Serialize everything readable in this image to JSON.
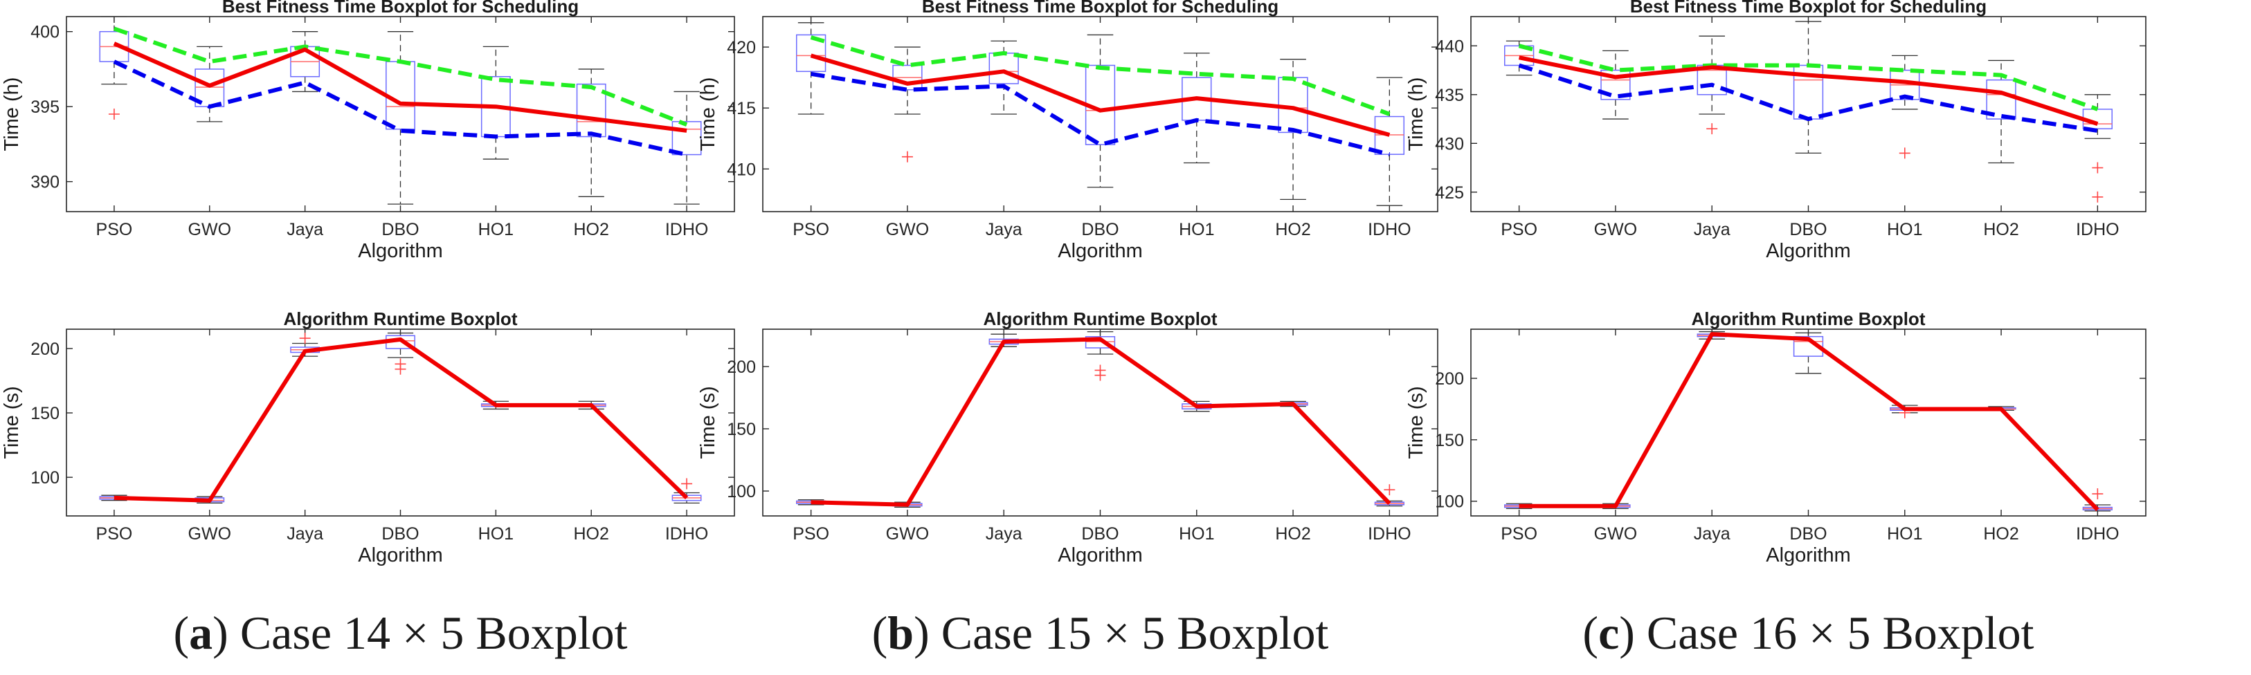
{
  "panels": [
    {
      "caption": {
        "letter": "a",
        "text": " Case 14 × 5 Boxplot"
      },
      "charts": [
        {
          "type": "box",
          "title": "Best Fitness Time Boxplot for Scheduling",
          "xlabel": "Algorithm",
          "ylabel": "Time (h)",
          "categories": [
            "PSO",
            "GWO",
            "Jaya",
            "DBO",
            "HO1",
            "HO2",
            "IDHO"
          ],
          "ylim": [
            388,
            401
          ],
          "yticks": [
            390,
            395,
            400
          ],
          "boxes": [
            {
              "min": 396.5,
              "q1": 398.0,
              "median": 399.0,
              "q3": 400.0,
              "max": 401.0,
              "outliers": [
                394.5
              ]
            },
            {
              "min": 394.0,
              "q1": 395.0,
              "median": 396.3,
              "q3": 397.5,
              "max": 399.0,
              "outliers": []
            },
            {
              "min": 396.0,
              "q1": 397.0,
              "median": 398.0,
              "q3": 399.0,
              "max": 400.0,
              "outliers": []
            },
            {
              "min": 388.5,
              "q1": 393.5,
              "median": 395.0,
              "q3": 398.0,
              "max": 400.0,
              "outliers": []
            },
            {
              "min": 391.5,
              "q1": 393.0,
              "median": 395.0,
              "q3": 397.0,
              "max": 399.0,
              "outliers": []
            },
            {
              "min": 389.0,
              "q1": 393.0,
              "median": 394.0,
              "q3": 396.5,
              "max": 397.5,
              "outliers": []
            },
            {
              "min": 388.5,
              "q1": 391.8,
              "median": 393.5,
              "q3": 394.0,
              "max": 396.0,
              "outliers": []
            }
          ],
          "lines": {
            "max": [
              400.2,
              398.0,
              399.0,
              398.0,
              396.8,
              396.3,
              393.8
            ],
            "mean": [
              399.2,
              396.4,
              398.8,
              395.2,
              395.0,
              394.2,
              393.4
            ],
            "min": [
              398.0,
              395.0,
              396.6,
              393.4,
              393.0,
              393.2,
              391.8
            ]
          }
        },
        {
          "type": "box",
          "title": "Algorithm Runtime Boxplot",
          "xlabel": "Algorithm",
          "ylabel": "Time (s)",
          "categories": [
            "PSO",
            "GWO",
            "Jaya",
            "DBO",
            "HO1",
            "HO2",
            "IDHO"
          ],
          "ylim": [
            70,
            215
          ],
          "yticks": [
            100,
            150,
            200
          ],
          "boxes": [
            {
              "min": 82,
              "q1": 83,
              "median": 84,
              "q3": 85,
              "max": 86,
              "outliers": []
            },
            {
              "min": 80,
              "q1": 81,
              "median": 82,
              "q3": 84,
              "max": 85,
              "outliers": []
            },
            {
              "min": 194,
              "q1": 197,
              "median": 199,
              "q3": 201,
              "max": 204,
              "outliers": [
                208
              ]
            },
            {
              "min": 193,
              "q1": 200,
              "median": 206,
              "q3": 210,
              "max": 212,
              "outliers": [
                188,
                184
              ]
            },
            {
              "min": 153,
              "q1": 155,
              "median": 156,
              "q3": 157,
              "max": 159,
              "outliers": []
            },
            {
              "min": 153,
              "q1": 155,
              "median": 156,
              "q3": 157,
              "max": 159,
              "outliers": []
            },
            {
              "min": 80,
              "q1": 82,
              "median": 84,
              "q3": 86,
              "max": 88,
              "outliers": [
                95
              ]
            }
          ],
          "lines": {
            "mean": [
              84,
              82,
              198,
              207,
              156,
              156,
              84
            ]
          }
        }
      ]
    },
    {
      "caption": {
        "letter": "b",
        "text": " Case 15 × 5 Boxplot"
      },
      "charts": [
        {
          "type": "box",
          "title": "Best Fitness Time Boxplot for Scheduling",
          "xlabel": "Algorithm",
          "ylabel": "Time (h)",
          "categories": [
            "PSO",
            "GWO",
            "Jaya",
            "DBO",
            "HO1",
            "HO2",
            "IDHO"
          ],
          "ylim": [
            406.5,
            422.5
          ],
          "yticks": [
            410,
            415,
            420
          ],
          "boxes": [
            {
              "min": 414.5,
              "q1": 418.0,
              "median": 419.3,
              "q3": 421.0,
              "max": 422.0,
              "outliers": []
            },
            {
              "min": 414.5,
              "q1": 416.5,
              "median": 417.5,
              "q3": 418.5,
              "max": 420.0,
              "outliers": [
                411.0
              ]
            },
            {
              "min": 414.5,
              "q1": 417.0,
              "median": 418.0,
              "q3": 419.5,
              "max": 420.5,
              "outliers": []
            },
            {
              "min": 408.5,
              "q1": 412.0,
              "median": 414.8,
              "q3": 418.5,
              "max": 421.0,
              "outliers": []
            },
            {
              "min": 410.5,
              "q1": 414.0,
              "median": 415.8,
              "q3": 417.5,
              "max": 419.5,
              "outliers": []
            },
            {
              "min": 407.5,
              "q1": 413.0,
              "median": 415.0,
              "q3": 417.5,
              "max": 419.0,
              "outliers": []
            },
            {
              "min": 407.0,
              "q1": 411.2,
              "median": 412.8,
              "q3": 414.3,
              "max": 417.5,
              "outliers": []
            }
          ],
          "lines": {
            "max": [
              420.8,
              418.5,
              419.5,
              418.3,
              417.8,
              417.4,
              414.5
            ],
            "mean": [
              419.3,
              417.0,
              418.0,
              414.8,
              415.8,
              415.0,
              412.8
            ],
            "min": [
              417.8,
              416.5,
              416.8,
              412.0,
              414.0,
              413.2,
              411.2
            ]
          }
        },
        {
          "type": "box",
          "title": "Algorithm Runtime Boxplot",
          "xlabel": "Algorithm",
          "ylabel": "Time (s)",
          "categories": [
            "PSO",
            "GWO",
            "Jaya",
            "DBO",
            "HO1",
            "HO2",
            "IDHO"
          ],
          "ylim": [
            80,
            230
          ],
          "yticks": [
            100,
            150,
            200
          ],
          "boxes": [
            {
              "min": 89,
              "q1": 90,
              "median": 91,
              "q3": 92,
              "max": 93,
              "outliers": []
            },
            {
              "min": 87,
              "q1": 88,
              "median": 89,
              "q3": 90,
              "max": 91,
              "outliers": []
            },
            {
              "min": 216,
              "q1": 218,
              "median": 220,
              "q3": 222,
              "max": 226,
              "outliers": []
            },
            {
              "min": 210,
              "q1": 215,
              "median": 220,
              "q3": 224,
              "max": 228,
              "outliers": [
                197,
                193
              ]
            },
            {
              "min": 164,
              "q1": 166,
              "median": 168,
              "q3": 170,
              "max": 172,
              "outliers": []
            },
            {
              "min": 168,
              "q1": 169,
              "median": 170,
              "q3": 171,
              "max": 172,
              "outliers": []
            },
            {
              "min": 88,
              "q1": 89,
              "median": 90,
              "q3": 91,
              "max": 92,
              "outliers": [
                101
              ]
            }
          ],
          "lines": {
            "mean": [
              91,
              89,
              220,
              222,
              168,
              170,
              90
            ]
          }
        }
      ]
    },
    {
      "caption": {
        "letter": "c",
        "text": " Case 16 × 5 Boxplot"
      },
      "charts": [
        {
          "type": "box",
          "title": "Best Fitness Time Boxplot for Scheduling",
          "xlabel": "Algorithm",
          "ylabel": "Time (h)",
          "categories": [
            "PSO",
            "GWO",
            "Jaya",
            "DBO",
            "HO1",
            "HO2",
            "IDHO"
          ],
          "ylim": [
            423,
            443
          ],
          "yticks": [
            425,
            430,
            435,
            440
          ],
          "boxes": [
            {
              "min": 437.0,
              "q1": 438.0,
              "median": 439.0,
              "q3": 440.0,
              "max": 440.5,
              "outliers": []
            },
            {
              "min": 432.5,
              "q1": 434.5,
              "median": 436.5,
              "q3": 437.5,
              "max": 439.5,
              "outliers": []
            },
            {
              "min": 433.0,
              "q1": 435.0,
              "median": 437.5,
              "q3": 438.0,
              "max": 441.0,
              "outliers": [
                431.5
              ]
            },
            {
              "min": 429.0,
              "q1": 432.5,
              "median": 436.5,
              "q3": 438.0,
              "max": 442.5,
              "outliers": []
            },
            {
              "min": 433.5,
              "q1": 434.5,
              "median": 436.0,
              "q3": 437.5,
              "max": 439.0,
              "outliers": [
                429.0
              ]
            },
            {
              "min": 428.0,
              "q1": 432.5,
              "median": 435.0,
              "q3": 436.5,
              "max": 438.5,
              "outliers": []
            },
            {
              "min": 430.5,
              "q1": 431.5,
              "median": 432.0,
              "q3": 433.5,
              "max": 435.0,
              "outliers": [
                427.5,
                424.5
              ]
            }
          ],
          "lines": {
            "max": [
              440.0,
              437.5,
              438.0,
              438.0,
              437.5,
              437.0,
              433.5
            ],
            "mean": [
              438.8,
              436.8,
              437.8,
              437.0,
              436.3,
              435.2,
              432.0
            ],
            "min": [
              438.0,
              434.8,
              436.0,
              432.5,
              434.8,
              432.8,
              431.3
            ]
          }
        },
        {
          "type": "box",
          "title": "Algorithm Runtime Boxplot",
          "xlabel": "Algorithm",
          "ylabel": "Time (s)",
          "categories": [
            "PSO",
            "GWO",
            "Jaya",
            "DBO",
            "HO1",
            "HO2",
            "IDHO"
          ],
          "ylim": [
            88,
            240
          ],
          "yticks": [
            100,
            150,
            200
          ],
          "boxes": [
            {
              "min": 94,
              "q1": 95,
              "median": 96,
              "q3": 97,
              "max": 98,
              "outliers": []
            },
            {
              "min": 94,
              "q1": 95,
              "median": 96,
              "q3": 97,
              "max": 98,
              "outliers": []
            },
            {
              "min": 232,
              "q1": 234,
              "median": 235,
              "q3": 236,
              "max": 238,
              "outliers": []
            },
            {
              "min": 204,
              "q1": 218,
              "median": 230,
              "q3": 234,
              "max": 237,
              "outliers": []
            },
            {
              "min": 172,
              "q1": 174,
              "median": 175,
              "q3": 176,
              "max": 178,
              "outliers": [
                172
              ]
            },
            {
              "min": 174,
              "q1": 175,
              "median": 175,
              "q3": 176,
              "max": 177,
              "outliers": []
            },
            {
              "min": 92,
              "q1": 93,
              "median": 94,
              "q3": 95,
              "max": 97,
              "outliers": [
                106
              ]
            }
          ],
          "lines": {
            "mean": [
              96,
              96,
              236,
              232,
              175,
              175,
              93
            ]
          }
        }
      ]
    }
  ],
  "colors": {
    "box": "#6b6bff",
    "median": "#ff6b6b",
    "whisker": "#333333",
    "outlier": "#ff4444",
    "mean_line": "#f00000",
    "max_line": "#22ee22",
    "min_line": "#0000ee"
  }
}
